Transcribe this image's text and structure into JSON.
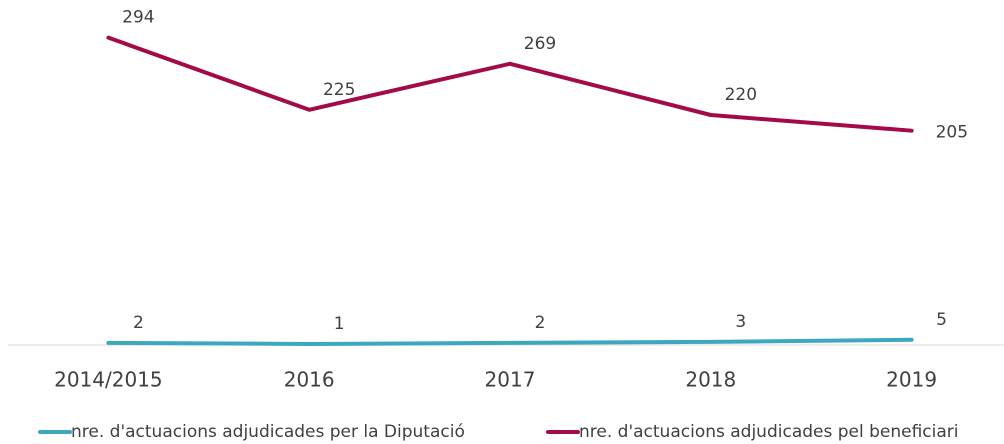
{
  "chart_data": {
    "type": "line",
    "categories": [
      "2014/2015",
      "2016",
      "2017",
      "2018",
      "2019"
    ],
    "series": [
      {
        "name": "nre. d'actuacions adjudicades per la Diputació",
        "color": "#3ba8c0",
        "values": [
          2,
          1,
          2,
          3,
          5
        ]
      },
      {
        "name": "nre. d'actuacions adjudicades pel beneficiari",
        "color": "#a30a4a",
        "values": [
          294,
          225,
          269,
          220,
          205
        ]
      }
    ],
    "ylim": [
      0,
      330
    ],
    "legend": "bottom"
  }
}
